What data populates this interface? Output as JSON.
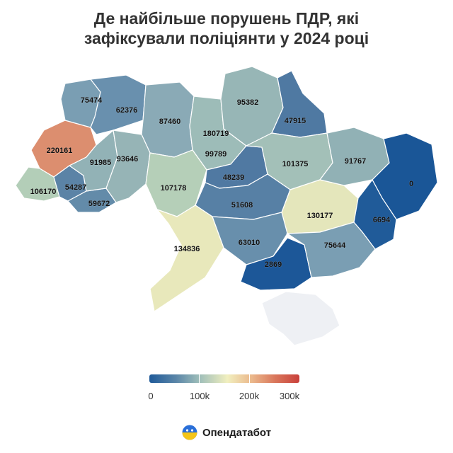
{
  "title": {
    "line1": "Де найбільше порушень ПДР, які",
    "line2": "зафіксували поліціянти у 2024 році"
  },
  "map": {
    "regions": [
      {
        "id": "lviv",
        "value": 220161,
        "label": "220161",
        "color": "#dc8e6f"
      },
      {
        "id": "volyn",
        "value": 75474,
        "label": "75474",
        "color": "#7a9eb3"
      },
      {
        "id": "rivne",
        "value": 62376,
        "label": "62376",
        "color": "#6990ae"
      },
      {
        "id": "zhytomyr",
        "value": 87460,
        "label": "87460",
        "color": "#8aaab6"
      },
      {
        "id": "kyiv-city",
        "value": 180719,
        "label": "180719",
        "color": "#efc88f"
      },
      {
        "id": "kyiv-oblast",
        "value": 99789,
        "label": "99789",
        "color": "#9dbcb8"
      },
      {
        "id": "chernihiv",
        "value": 95382,
        "label": "95382",
        "color": "#97b6b6"
      },
      {
        "id": "sumy",
        "value": 47915,
        "label": "47915",
        "color": "#4f79a2"
      },
      {
        "id": "zakarpattia",
        "value": 106170,
        "label": "106170",
        "color": "#b3ceb8"
      },
      {
        "id": "ivano-frankivsk",
        "value": 54287,
        "label": "54287",
        "color": "#5b83a6"
      },
      {
        "id": "chernivtsi",
        "value": 59672,
        "label": "59672",
        "color": "#638ba9"
      },
      {
        "id": "ternopil",
        "value": 91985,
        "label": "91985",
        "color": "#92b2b6"
      },
      {
        "id": "khmelnytskyi",
        "value": 93646,
        "label": "93646",
        "color": "#96b4b6"
      },
      {
        "id": "vinnytsia",
        "value": 107178,
        "label": "107178",
        "color": "#b5cfb8"
      },
      {
        "id": "cherkasy",
        "value": 48239,
        "label": "48239",
        "color": "#5079a2"
      },
      {
        "id": "poltava",
        "value": 101375,
        "label": "101375",
        "color": "#a3c0b8"
      },
      {
        "id": "kharkiv",
        "value": 91767,
        "label": "91767",
        "color": "#91b1b5"
      },
      {
        "id": "kirovohrad",
        "value": 51608,
        "label": "51608",
        "color": "#5780a5"
      },
      {
        "id": "dnipro",
        "value": 130177,
        "label": "130177",
        "color": "#e4e6bb"
      },
      {
        "id": "luhansk",
        "value": 0,
        "label": "0",
        "color": "#1a5697"
      },
      {
        "id": "donetsk",
        "value": 6694,
        "label": "6694",
        "color": "#205b99"
      },
      {
        "id": "odesa",
        "value": 134836,
        "label": "134836",
        "color": "#e8e8bb"
      },
      {
        "id": "mykolaiv",
        "value": 63010,
        "label": "63010",
        "color": "#688fac"
      },
      {
        "id": "kherson",
        "value": 2869,
        "label": "2869",
        "color": "#1c5798"
      },
      {
        "id": "zaporizhzhia",
        "value": 75644,
        "label": "75644",
        "color": "#7a9eb3"
      },
      {
        "id": "crimea",
        "value": null,
        "label": "",
        "color": "#eef0f4"
      }
    ]
  },
  "legend": {
    "min": 0,
    "max": 300000,
    "labels": [
      "0",
      "100k",
      "200k",
      "300k"
    ],
    "colors": [
      "#1f5a99",
      "#f1efbf",
      "#c9403b"
    ]
  },
  "brand": {
    "name": "Опендатабот",
    "icon": "opendatabot-logo-icon"
  }
}
